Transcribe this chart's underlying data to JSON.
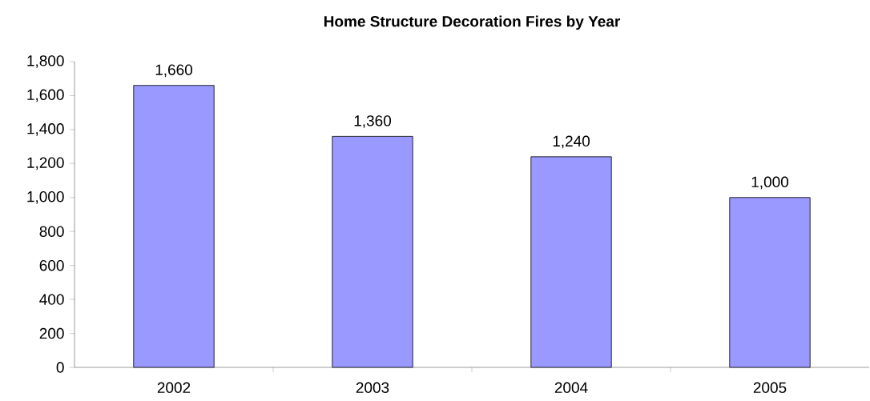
{
  "chart_data": {
    "type": "bar",
    "title": "Home Structure Decoration Fires by Year",
    "categories": [
      "2002",
      "2003",
      "2004",
      "2005"
    ],
    "values": [
      1660,
      1360,
      1240,
      1000
    ],
    "value_labels": [
      "1,660",
      "1,360",
      "1,240",
      "1,000"
    ],
    "color": "#9999ff",
    "ylim": [
      0,
      1800
    ],
    "yticks": [
      0,
      200,
      400,
      600,
      800,
      {
        "value": 1000,
        "label": "1,000"
      },
      {
        "value": 1200,
        "label": "1,200"
      },
      {
        "value": 1400,
        "label": "1,400"
      },
      {
        "value": 1600,
        "label": "1,600"
      },
      {
        "value": 1800,
        "label": "1,800"
      }
    ]
  }
}
